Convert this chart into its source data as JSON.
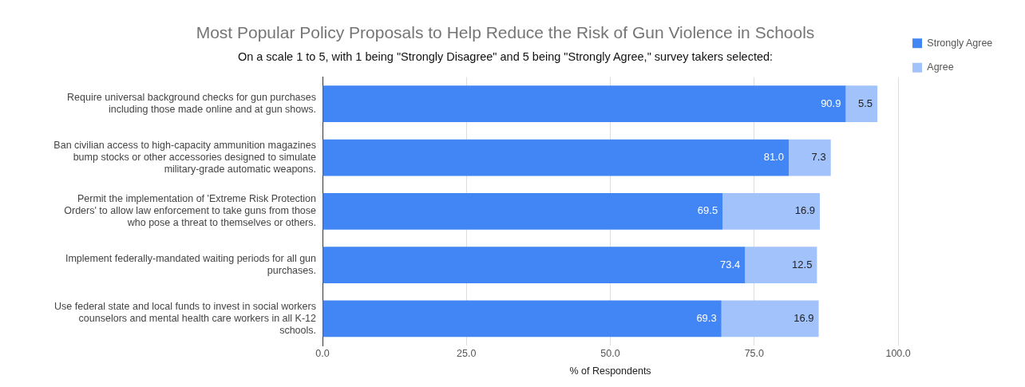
{
  "chart_data": {
    "type": "bar",
    "orientation": "horizontal",
    "stacked": true,
    "title": "Most Popular Policy Proposals to Help Reduce the Risk of Gun Violence in Schools",
    "subtitle": "On a scale 1 to 5, with 1 being \"Strongly Disagree\" and 5 being \"Strongly Agree,\" survey takers selected:",
    "xlabel": "% of Respondents",
    "categories": [
      "Require universal background checks for gun purchases including those made online and at gun shows.",
      "Ban civilian access to high-capacity ammunition magazines bump stocks or other accessories designed to simulate military-grade automatic weapons.",
      "Permit the implementation of 'Extreme Risk Protection Orders' to allow law enforcement to take guns from those who pose a threat to themselves or others.",
      "Implement federally-mandated waiting periods for all gun purchases.",
      "Use federal state and local funds to invest in social workers counselors and mental health care workers in all K-12 schools."
    ],
    "series": [
      {
        "name": "Strongly Agree",
        "color": "#4285f4",
        "values": [
          90.9,
          81.0,
          69.5,
          73.4,
          69.3
        ],
        "value_labels": [
          "90.9",
          "81.0",
          "69.5",
          "73.4",
          "69.3"
        ]
      },
      {
        "name": "Agree",
        "color": "#a1c2fa",
        "values": [
          5.5,
          7.3,
          16.9,
          12.5,
          16.9
        ],
        "value_labels": [
          "5.5",
          "7.3",
          "16.9",
          "12.5",
          "16.9"
        ]
      }
    ],
    "xlim": [
      0,
      100
    ],
    "xticks": [
      {
        "value": 0,
        "label": "0.0"
      },
      {
        "value": 25,
        "label": "25.0"
      },
      {
        "value": 50,
        "label": "50.0"
      },
      {
        "value": 75,
        "label": "75.0"
      },
      {
        "value": 100,
        "label": "100.0"
      }
    ],
    "grid": "x",
    "legend": "top right"
  }
}
